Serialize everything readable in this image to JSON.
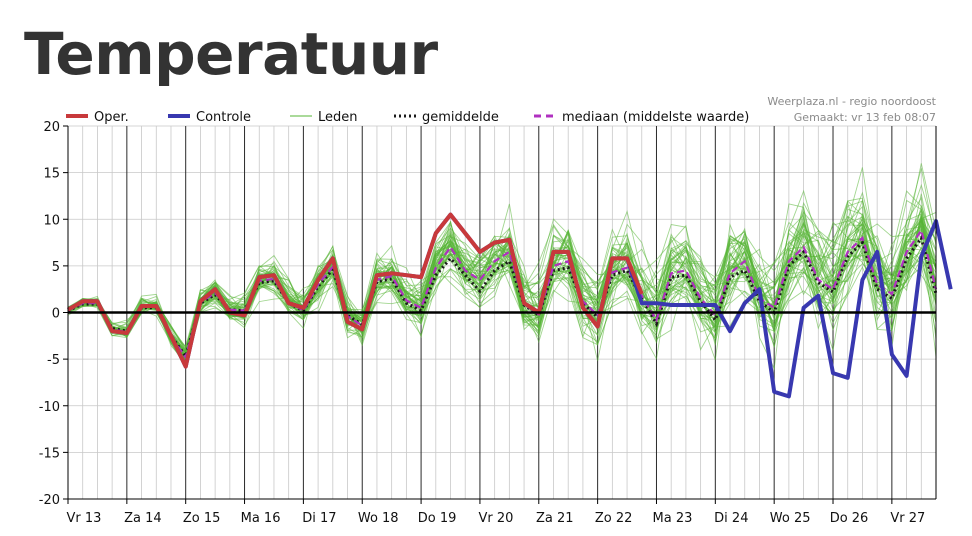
{
  "page": {
    "title": "Temperatuur"
  },
  "credit": {
    "line1": "Weerplaza.nl - regio noordoost",
    "line2": "Gemaakt: vr 13 feb 08:07"
  },
  "colors": {
    "oper": "#c8393b",
    "controle": "#3838b0",
    "leden": "#55b535",
    "gemiddelde": "#1a1a1a",
    "mediaan": "#b030c0",
    "zero_line": "#000000",
    "day_line": "#2a2a2a",
    "grid": "#c8c8c8"
  },
  "chart_data": {
    "type": "line",
    "title": "Temperatuur",
    "ylim": [
      -20,
      20
    ],
    "yticks": [
      -20,
      -15,
      -10,
      -5,
      0,
      5,
      10,
      15,
      20
    ],
    "x_range": [
      0,
      44
    ],
    "day_labels": [
      "Vr 13",
      "Za 14",
      "Zo 15",
      "Ma 16",
      "Di 17",
      "Wo 18",
      "Do 19",
      "Vr 20",
      "Za 21",
      "Zo 22",
      "Ma 23",
      "Di 24",
      "Wo 25",
      "Do 26",
      "Vr 27"
    ],
    "grid": true,
    "legend_position": "top-left",
    "legend": [
      {
        "key": "oper",
        "label": "Oper.",
        "style": "thick-red"
      },
      {
        "key": "controle",
        "label": "Controle",
        "style": "thick-blue"
      },
      {
        "key": "leden",
        "label": "Leden",
        "style": "thin-green"
      },
      {
        "key": "gemiddelde",
        "label": "gemiddelde",
        "style": "dotted-black"
      },
      {
        "key": "mediaan",
        "label": "mediaan (middelste waarde)",
        "style": "dashed-purple"
      }
    ],
    "series": [
      {
        "name": "Oper.",
        "key": "oper",
        "values": [
          0.3,
          1.2,
          1.2,
          -2,
          -2.2,
          0.7,
          0.7,
          -2.5,
          -5.8,
          1.2,
          2.5,
          0,
          -0.3,
          3.8,
          4,
          1,
          0.5,
          3.5,
          5.8,
          -1,
          -1.8,
          4,
          4.2,
          4,
          3.8,
          8.5,
          10.5,
          8.5,
          6.5,
          7.5,
          7.8,
          1,
          0,
          6.5,
          6.5,
          0.5,
          -1.5,
          5.8,
          5.8,
          2,
          null,
          null,
          null,
          null,
          null
        ]
      },
      {
        "name": "Controle",
        "key": "controle",
        "values": [
          0.3,
          1.2,
          1.2,
          -2,
          -2.2,
          0.7,
          0.7,
          -2.5,
          -5.8,
          1.2,
          2.5,
          0,
          -0.3,
          3.8,
          4,
          1,
          0.5,
          3.5,
          5.8,
          -1,
          -1.8,
          4,
          4.2,
          4,
          3.8,
          8.5,
          10.5,
          8.5,
          6.5,
          7.5,
          7.8,
          1,
          0,
          6.5,
          6.5,
          0.5,
          -1.5,
          5.8,
          5.8,
          1,
          1,
          0.8,
          0.8,
          0.8,
          0.8,
          -2,
          1,
          2.5,
          -8.5,
          -9,
          0.5,
          1.8,
          -6.5,
          -7,
          3.5,
          6.5,
          -4.5,
          -6.8,
          6,
          9.8,
          2.5
        ]
      },
      {
        "name": "gemiddelde",
        "key": "gemiddelde",
        "values": [
          0.2,
          0.9,
          0.9,
          -1.7,
          -2.0,
          0.5,
          0.5,
          -2.5,
          -4.7,
          1.0,
          1.9,
          0.3,
          0.2,
          3.2,
          3.4,
          1.0,
          0.2,
          2.8,
          4.6,
          -0.3,
          -1.3,
          3.3,
          3.6,
          1.0,
          0.2,
          4.0,
          5.8,
          4.0,
          2.3,
          4.5,
          5.5,
          0.8,
          -0.3,
          4.5,
          4.8,
          1.0,
          -0.5,
          4.0,
          4.5,
          1.5,
          -1.2,
          3.8,
          4.0,
          1.2,
          -0.8,
          3.8,
          4.5,
          1.2,
          0.0,
          5.0,
          6.5,
          3.2,
          2.2,
          6.0,
          7.5,
          2.5,
          1.5,
          5.8,
          8.0,
          2.0
        ]
      },
      {
        "name": "mediaan (middelste waarde)",
        "key": "mediaan",
        "values": [
          0.2,
          1.0,
          1.0,
          -1.8,
          -2.1,
          0.6,
          0.6,
          -2.6,
          -4.8,
          1.1,
          2.1,
          0.3,
          0.2,
          3.4,
          3.6,
          1.1,
          0.2,
          3.0,
          4.9,
          -0.4,
          -1.4,
          3.5,
          3.9,
          1.3,
          0.5,
          4.8,
          7.0,
          4.5,
          3.5,
          5.5,
          6.5,
          0.9,
          -0.2,
          5.0,
          5.5,
          1.2,
          -0.3,
          4.3,
          4.8,
          1.8,
          -0.8,
          4.2,
          4.5,
          1.5,
          -0.3,
          4.2,
          5.5,
          1.5,
          0.5,
          5.5,
          7.0,
          3.5,
          2.5,
          6.5,
          8.0,
          3.0,
          2.0,
          6.5,
          8.8,
          2.5
        ]
      },
      {
        "name": "Leden",
        "key": "leden",
        "count": 50,
        "spread_start": 0.4,
        "spread_end": 5.5
      }
    ]
  }
}
